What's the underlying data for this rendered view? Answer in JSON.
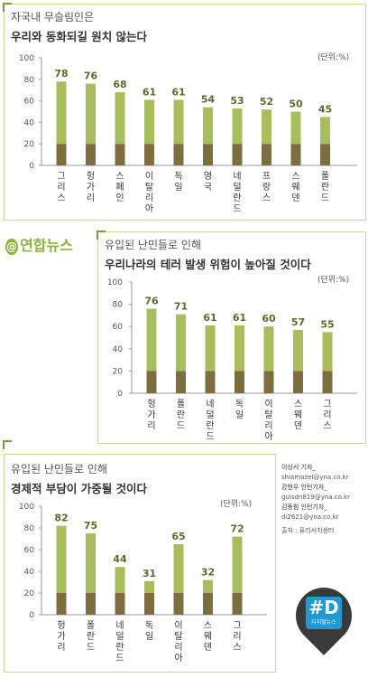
{
  "colors": {
    "light": "#a9bd5a",
    "dark": "#7c6e3d",
    "frame": "#c9d79a",
    "accent": "#7d9a3a"
  },
  "charts": [
    {
      "title_line1": "자국내 무슬림인은",
      "title_line2": "우리와 동화되길 원치 않는다",
      "unit": "(단위:%)"
    },
    {
      "title_line1": "유입된 난민들로 인해",
      "title_line2": "우리나라의 테러 발생 위험이 높아질 것이다",
      "unit": "(단위:%)"
    },
    {
      "title_line1": "유입된 난민들로 인해",
      "title_line2": "경제적 부담이 가중될 것이다",
      "unit": "(단위:%)"
    }
  ],
  "chart_data": [
    {
      "type": "bar",
      "categories": [
        "그리스",
        "헝가리",
        "스페인",
        "이탈리아",
        "독일",
        "영국",
        "네덜란드",
        "프랑스",
        "스웨덴",
        "폴란드"
      ],
      "values": [
        78,
        76,
        68,
        61,
        61,
        54,
        53,
        52,
        50,
        45
      ],
      "ylim": [
        0,
        100
      ],
      "yticks": [
        0,
        20,
        40,
        60,
        80,
        100
      ],
      "title": "자국내 무슬림인은 우리와 동화되길 원치 않는다",
      "ylabel": "(단위:%)",
      "grid": false
    },
    {
      "type": "bar",
      "categories": [
        "헝가리",
        "폴란드",
        "네덜란드",
        "독일",
        "이탈리아",
        "스웨덴",
        "그리스"
      ],
      "values": [
        76,
        71,
        61,
        61,
        60,
        57,
        55
      ],
      "ylim": [
        0,
        100
      ],
      "yticks": [
        0,
        20,
        40,
        60,
        80,
        100
      ],
      "title": "유입된 난민들로 인해 우리나라의 테러 발생 위험이 높아질 것이다",
      "ylabel": "(단위:%)",
      "grid": false
    },
    {
      "type": "bar",
      "categories": [
        "헝가리",
        "폴란드",
        "네덜란드",
        "독일",
        "이탈리아",
        "스웨덴",
        "그리스"
      ],
      "values": [
        82,
        75,
        44,
        31,
        65,
        32,
        72
      ],
      "ylim": [
        0,
        100
      ],
      "yticks": [
        0,
        20,
        40,
        60,
        80,
        100
      ],
      "title": "유입된 난민들로 인해 경제적 부담이 가중될 것이다",
      "ylabel": "(단위:%)",
      "grid": false
    }
  ],
  "logo": {
    "text": "연합뉴스",
    "mark": "@"
  },
  "credits": {
    "line1": "이상서 기자_",
    "line2": "shiamazel@yna.co.kr",
    "line3": "강현우 인턴기자_",
    "line4": "guisdn819@yna.co.kr",
    "line5": "김동힘 인턴기자_",
    "line6": "di2621@yna.co.kr",
    "line7": "출처 : 퓨리서치센터"
  },
  "badge": {
    "big": "#D",
    "small": "디지털뉴스"
  }
}
